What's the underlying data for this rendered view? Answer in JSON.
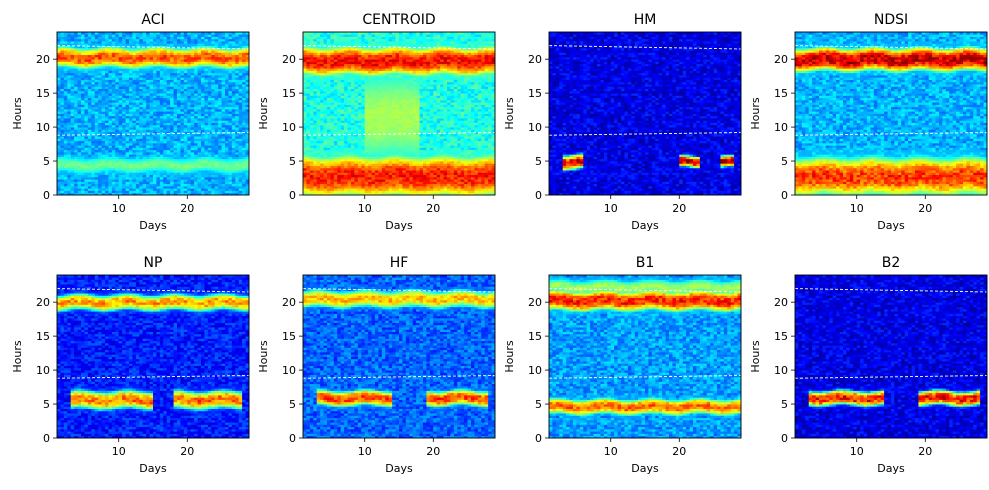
{
  "chart_data": [
    {
      "type": "heatmap",
      "title": "ACI",
      "xlabel": "Days",
      "ylabel": "Hours",
      "xlim": [
        1,
        29
      ],
      "ylim": [
        0,
        24
      ],
      "xticks": [
        "10",
        "20"
      ],
      "yticks": [
        "0",
        "5",
        "10",
        "15",
        "20"
      ],
      "colormap": "jet",
      "background_level": 0.3,
      "bands": [
        {
          "hours": [
            19,
            21.5
          ],
          "intensity": 0.82,
          "days": [
            1,
            29
          ]
        },
        {
          "hours": [
            3.7,
            5.2
          ],
          "intensity": 0.5,
          "days": [
            1,
            29
          ]
        }
      ],
      "reference_lines": [
        {
          "from": 22,
          "to": 21.5
        },
        {
          "from": 8.8,
          "to": 9.2
        }
      ]
    },
    {
      "type": "heatmap",
      "title": "CENTROID",
      "xlabel": "Days",
      "ylabel": "Hours",
      "xlim": [
        1,
        29
      ],
      "ylim": [
        0,
        24
      ],
      "xticks": [
        "10",
        "20"
      ],
      "yticks": [
        "0",
        "5",
        "10",
        "15",
        "20"
      ],
      "colormap": "jet",
      "background_level": 0.4,
      "bands": [
        {
          "hours": [
            18,
            21.5
          ],
          "intensity": 0.9,
          "days": [
            1,
            29
          ]
        },
        {
          "hours": [
            0,
            5.5
          ],
          "intensity": 0.88,
          "days": [
            1,
            29
          ]
        },
        {
          "hours": [
            6,
            17
          ],
          "intensity": 0.55,
          "days": [
            10,
            18
          ]
        }
      ],
      "reference_lines": [
        {
          "from": 22,
          "to": 21.5
        },
        {
          "from": 8.8,
          "to": 9.2
        }
      ]
    },
    {
      "type": "heatmap",
      "title": "HM",
      "xlabel": "Days",
      "ylabel": "Hours",
      "xlim": [
        1,
        29
      ],
      "ylim": [
        0,
        24
      ],
      "xticks": [
        "10",
        "20"
      ],
      "yticks": [
        "0",
        "5",
        "10",
        "15",
        "20"
      ],
      "colormap": "jet",
      "background_level": 0.1,
      "bands": [
        {
          "hours": [
            4,
            5.8
          ],
          "intensity": 0.95,
          "days": [
            3,
            6
          ]
        },
        {
          "hours": [
            4.3,
            5.5
          ],
          "intensity": 0.95,
          "days": [
            20,
            23
          ]
        },
        {
          "hours": [
            4.3,
            5.5
          ],
          "intensity": 0.98,
          "days": [
            26,
            28
          ]
        }
      ],
      "reference_lines": [
        {
          "from": 22,
          "to": 21.5
        },
        {
          "from": 8.8,
          "to": 9.2
        }
      ]
    },
    {
      "type": "heatmap",
      "title": "NDSI",
      "xlabel": "Days",
      "ylabel": "Hours",
      "xlim": [
        1,
        29
      ],
      "ylim": [
        0,
        24
      ],
      "xticks": [
        "10",
        "20"
      ],
      "yticks": [
        "0",
        "5",
        "10",
        "15",
        "20"
      ],
      "colormap": "jet",
      "background_level": 0.3,
      "bands": [
        {
          "hours": [
            18.5,
            21.5
          ],
          "intensity": 0.97,
          "days": [
            1,
            29
          ]
        },
        {
          "hours": [
            0,
            5.5
          ],
          "intensity": 0.85,
          "days": [
            1,
            29
          ]
        }
      ],
      "reference_lines": [
        {
          "from": 22,
          "to": 21.5
        },
        {
          "from": 8.8,
          "to": 9.2
        }
      ]
    },
    {
      "type": "heatmap",
      "title": "NP",
      "xlabel": "Days",
      "ylabel": "Hours",
      "xlim": [
        1,
        29
      ],
      "ylim": [
        0,
        24
      ],
      "xticks": [
        "10",
        "20"
      ],
      "yticks": [
        "0",
        "5",
        "10",
        "15",
        "20"
      ],
      "colormap": "jet",
      "background_level": 0.15,
      "bands": [
        {
          "hours": [
            19,
            21
          ],
          "intensity": 0.75,
          "days": [
            1,
            29
          ]
        },
        {
          "hours": [
            4.5,
            6.8
          ],
          "intensity": 0.8,
          "days": [
            3,
            15
          ]
        },
        {
          "hours": [
            4.5,
            6.8
          ],
          "intensity": 0.8,
          "days": [
            18,
            28
          ]
        }
      ],
      "reference_lines": [
        {
          "from": 22,
          "to": 21.5
        },
        {
          "from": 8.8,
          "to": 9.2
        }
      ]
    },
    {
      "type": "heatmap",
      "title": "HF",
      "xlabel": "Days",
      "ylabel": "Hours",
      "xlim": [
        1,
        29
      ],
      "ylim": [
        0,
        24
      ],
      "xticks": [
        "10",
        "20"
      ],
      "yticks": [
        "0",
        "5",
        "10",
        "15",
        "20"
      ],
      "colormap": "jet",
      "background_level": 0.22,
      "bands": [
        {
          "hours": [
            19.5,
            21.5
          ],
          "intensity": 0.72,
          "days": [
            1,
            29
          ]
        },
        {
          "hours": [
            5,
            6.8
          ],
          "intensity": 0.85,
          "days": [
            3,
            14
          ]
        },
        {
          "hours": [
            5,
            6.8
          ],
          "intensity": 0.85,
          "days": [
            19,
            28
          ]
        }
      ],
      "reference_lines": [
        {
          "from": 22,
          "to": 21.5
        },
        {
          "from": 8.8,
          "to": 9.2
        }
      ]
    },
    {
      "type": "heatmap",
      "title": "B1",
      "xlabel": "Days",
      "ylabel": "Hours",
      "xlim": [
        1,
        29
      ],
      "ylim": [
        0,
        24
      ],
      "xticks": [
        "10",
        "20"
      ],
      "yticks": [
        "0",
        "5",
        "10",
        "15",
        "20"
      ],
      "colormap": "jet",
      "background_level": 0.28,
      "bands": [
        {
          "hours": [
            19,
            21.5
          ],
          "intensity": 0.88,
          "days": [
            1,
            29
          ]
        },
        {
          "hours": [
            21.5,
            23
          ],
          "intensity": 0.55,
          "days": [
            1,
            29
          ]
        },
        {
          "hours": [
            3.8,
            5.5
          ],
          "intensity": 0.8,
          "days": [
            1,
            29
          ]
        }
      ],
      "reference_lines": [
        {
          "from": 22,
          "to": 21.5
        },
        {
          "from": 8.8,
          "to": 9.2
        }
      ]
    },
    {
      "type": "heatmap",
      "title": "B2",
      "xlabel": "Days",
      "ylabel": "Hours",
      "xlim": [
        1,
        29
      ],
      "ylim": [
        0,
        24
      ],
      "xticks": [
        "10",
        "20"
      ],
      "yticks": [
        "0",
        "5",
        "10",
        "15",
        "20"
      ],
      "colormap": "jet",
      "background_level": 0.1,
      "bands": [
        {
          "hours": [
            5,
            6.8
          ],
          "intensity": 0.9,
          "days": [
            3,
            14
          ]
        },
        {
          "hours": [
            5,
            6.8
          ],
          "intensity": 0.92,
          "days": [
            19,
            28
          ]
        }
      ],
      "reference_lines": [
        {
          "from": 22,
          "to": 21.5
        },
        {
          "from": 8.8,
          "to": 9.2
        }
      ]
    }
  ]
}
